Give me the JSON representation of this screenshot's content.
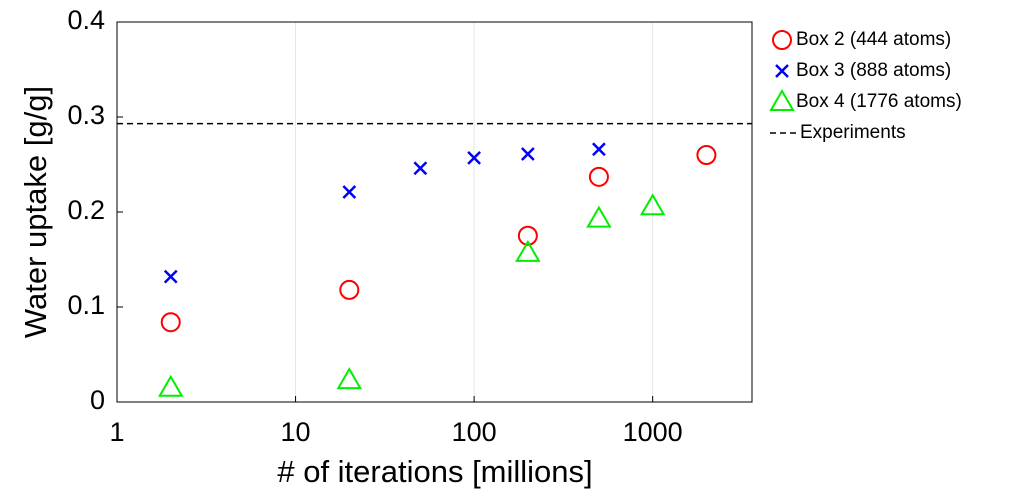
{
  "chart_data": {
    "type": "scatter",
    "x_label": "# of iterations [millions]",
    "y_label": "Water uptake [g/g]",
    "xscale": "log",
    "xlim": [
      1,
      3600
    ],
    "xticks": [
      1,
      10,
      100,
      1000
    ],
    "ylim": [
      0,
      0.4
    ],
    "yticks": [
      0,
      0.1,
      0.2,
      0.3,
      0.4
    ],
    "grid": true,
    "legend": "outside-right",
    "series": [
      {
        "name": "Box 2 (444 atoms)",
        "color": "#ff0000",
        "marker": "circle",
        "x": [
          2,
          20,
          200,
          500,
          2000
        ],
        "values": [
          0.084,
          0.118,
          0.175,
          0.237,
          0.26
        ]
      },
      {
        "name": "Box 3 (888 atoms)",
        "color": "#0000ff",
        "marker": "x",
        "x": [
          2,
          20,
          50,
          100,
          200,
          500
        ],
        "values": [
          0.132,
          0.221,
          0.246,
          0.257,
          0.261,
          0.266
        ]
      },
      {
        "name": "Box 4 (1776 atoms)",
        "color": "#00ee00",
        "marker": "triangle",
        "x": [
          2,
          20,
          200,
          500,
          1000
        ],
        "values": [
          0.015,
          0.023,
          0.157,
          0.193,
          0.206
        ]
      }
    ],
    "hlines": [
      {
        "name": "Experiments",
        "color": "#000000",
        "style": "dashed",
        "value": 0.293
      }
    ]
  }
}
